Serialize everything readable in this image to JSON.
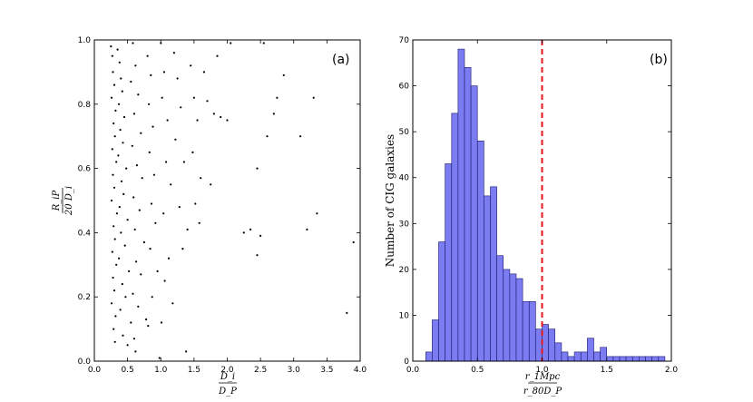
{
  "chart_data": [
    {
      "type": "scatter",
      "panel_label": "(a)",
      "xlabel_num": "D_i",
      "xlabel_den": "D_P",
      "ylabel_num": "R_iP",
      "ylabel_den": "20 D_i",
      "xlim": [
        0.0,
        4.0
      ],
      "ylim": [
        0.0,
        1.0
      ],
      "xticks": [
        "0.0",
        "0.5",
        "1.0",
        "1.5",
        "2.0",
        "2.5",
        "3.0",
        "3.5",
        "4.0"
      ],
      "yticks": [
        "0.0",
        "0.2",
        "0.4",
        "0.6",
        "0.8",
        "1.0"
      ],
      "color": "#000000",
      "points": [
        [
          0.25,
          0.98
        ],
        [
          0.27,
          0.95
        ],
        [
          0.28,
          0.9
        ],
        [
          0.3,
          0.86
        ],
        [
          0.26,
          0.82
        ],
        [
          0.32,
          0.78
        ],
        [
          0.29,
          0.74
        ],
        [
          0.31,
          0.7
        ],
        [
          0.27,
          0.66
        ],
        [
          0.33,
          0.62
        ],
        [
          0.28,
          0.58
        ],
        [
          0.3,
          0.54
        ],
        [
          0.26,
          0.5
        ],
        [
          0.34,
          0.46
        ],
        [
          0.29,
          0.42
        ],
        [
          0.31,
          0.38
        ],
        [
          0.27,
          0.34
        ],
        [
          0.33,
          0.3
        ],
        [
          0.28,
          0.26
        ],
        [
          0.3,
          0.22
        ],
        [
          0.26,
          0.18
        ],
        [
          0.32,
          0.14
        ],
        [
          0.29,
          0.1
        ],
        [
          0.31,
          0.06
        ],
        [
          0.35,
          0.97
        ],
        [
          0.38,
          0.93
        ],
        [
          0.4,
          0.88
        ],
        [
          0.42,
          0.84
        ],
        [
          0.37,
          0.8
        ],
        [
          0.45,
          0.76
        ],
        [
          0.39,
          0.72
        ],
        [
          0.43,
          0.68
        ],
        [
          0.36,
          0.64
        ],
        [
          0.48,
          0.6
        ],
        [
          0.41,
          0.56
        ],
        [
          0.44,
          0.52
        ],
        [
          0.38,
          0.48
        ],
        [
          0.5,
          0.44
        ],
        [
          0.4,
          0.4
        ],
        [
          0.46,
          0.36
        ],
        [
          0.37,
          0.32
        ],
        [
          0.52,
          0.28
        ],
        [
          0.42,
          0.24
        ],
        [
          0.47,
          0.2
        ],
        [
          0.39,
          0.16
        ],
        [
          0.55,
          0.12
        ],
        [
          0.43,
          0.08
        ],
        [
          0.5,
          0.05
        ],
        [
          0.58,
          0.99
        ],
        [
          0.62,
          0.92
        ],
        [
          0.55,
          0.87
        ],
        [
          0.66,
          0.83
        ],
        [
          0.6,
          0.77
        ],
        [
          0.7,
          0.71
        ],
        [
          0.57,
          0.67
        ],
        [
          0.64,
          0.61
        ],
        [
          0.72,
          0.57
        ],
        [
          0.59,
          0.51
        ],
        [
          0.68,
          0.47
        ],
        [
          0.61,
          0.41
        ],
        [
          0.75,
          0.37
        ],
        [
          0.63,
          0.31
        ],
        [
          0.7,
          0.27
        ],
        [
          0.58,
          0.21
        ],
        [
          0.66,
          0.17
        ],
        [
          0.78,
          0.13
        ],
        [
          0.6,
          0.07
        ],
        [
          0.62,
          0.03
        ],
        [
          0.8,
          0.95
        ],
        [
          0.85,
          0.89
        ],
        [
          0.82,
          0.8
        ],
        [
          0.88,
          0.73
        ],
        [
          0.83,
          0.65
        ],
        [
          0.9,
          0.58
        ],
        [
          0.86,
          0.49
        ],
        [
          0.92,
          0.43
        ],
        [
          0.84,
          0.35
        ],
        [
          0.95,
          0.28
        ],
        [
          0.87,
          0.2
        ],
        [
          0.81,
          0.11
        ],
        [
          1.0,
          0.99
        ],
        [
          1.05,
          0.9
        ],
        [
          1.02,
          0.82
        ],
        [
          1.1,
          0.75
        ],
        [
          1.08,
          0.62
        ],
        [
          1.15,
          0.55
        ],
        [
          1.04,
          0.46
        ],
        [
          1.12,
          0.32
        ],
        [
          1.06,
          0.25
        ],
        [
          1.18,
          0.18
        ],
        [
          1.01,
          0.12
        ],
        [
          0.98,
          0.01
        ],
        [
          1.2,
          0.96
        ],
        [
          1.25,
          0.88
        ],
        [
          1.3,
          0.79
        ],
        [
          1.22,
          0.69
        ],
        [
          1.35,
          0.62
        ],
        [
          1.28,
          0.48
        ],
        [
          1.4,
          0.41
        ],
        [
          1.33,
          0.35
        ],
        [
          1.38,
          0.03
        ],
        [
          1.45,
          0.92
        ],
        [
          1.5,
          0.82
        ],
        [
          1.55,
          0.75
        ],
        [
          1.48,
          0.65
        ],
        [
          1.6,
          0.57
        ],
        [
          1.52,
          0.49
        ],
        [
          1.58,
          0.43
        ],
        [
          1.65,
          0.9
        ],
        [
          1.7,
          0.81
        ],
        [
          1.8,
          0.77
        ],
        [
          1.75,
          0.55
        ],
        [
          1.85,
          0.95
        ],
        [
          1.9,
          0.76
        ],
        [
          2.0,
          0.75
        ],
        [
          2.05,
          0.99
        ],
        [
          2.25,
          0.4
        ],
        [
          2.35,
          0.41
        ],
        [
          2.45,
          0.33
        ],
        [
          2.45,
          0.6
        ],
        [
          2.5,
          0.39
        ],
        [
          2.55,
          0.99
        ],
        [
          2.6,
          0.7
        ],
        [
          2.7,
          0.77
        ],
        [
          2.75,
          0.82
        ],
        [
          2.85,
          0.89
        ],
        [
          3.1,
          0.7
        ],
        [
          3.2,
          0.41
        ],
        [
          3.3,
          0.82
        ],
        [
          3.35,
          0.46
        ],
        [
          3.8,
          0.15
        ],
        [
          3.9,
          0.37
        ]
      ]
    },
    {
      "type": "bar",
      "panel_label": "(b)",
      "xlabel_num": "r_1Mpc",
      "xlabel_den": "r_80D_P",
      "ylabel": "Number of CIG galaxies",
      "xlim": [
        0.0,
        2.0
      ],
      "ylim": [
        0,
        70
      ],
      "xticks": [
        "0.0",
        "0.5",
        "1.0",
        "1.5",
        "2.0"
      ],
      "yticks": [
        "0",
        "10",
        "20",
        "30",
        "40",
        "50",
        "60",
        "70"
      ],
      "bin_width": 0.05,
      "bin_start": 0.1,
      "values": [
        2,
        9,
        26,
        43,
        54,
        68,
        64,
        60,
        48,
        36,
        38,
        23,
        20,
        19,
        18,
        13,
        13,
        7,
        8,
        7,
        4,
        2,
        1,
        2,
        2,
        5,
        2,
        3,
        1,
        1,
        1,
        1,
        1,
        1,
        1,
        1,
        1
      ],
      "bar_color": "#7b7bf2",
      "bar_edge": "#1c1c6e",
      "threshold_x": 1.0,
      "threshold_color": "#e8141e"
    }
  ]
}
